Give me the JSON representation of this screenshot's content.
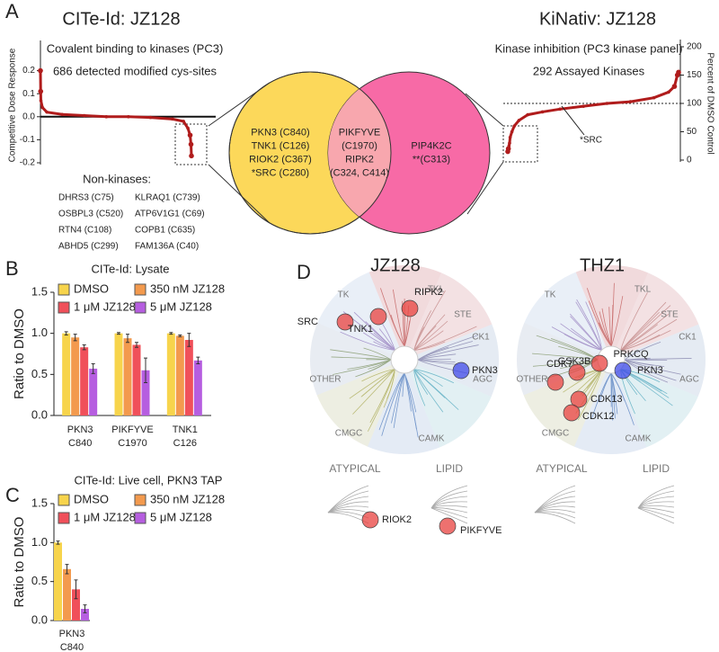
{
  "panels": [
    "A",
    "B",
    "C",
    "D"
  ],
  "chart_data": [
    {
      "type": "line",
      "title": "CITe-Id: JZ128",
      "subtitle": [
        "Covalent binding to kinases (PC3)",
        "686 detected modified cys-sites"
      ],
      "ylabel": "Competitive Dose Response",
      "color": "#b01c1c",
      "y_axis_side": "left",
      "x": [
        1,
        2,
        3,
        10,
        30,
        100,
        200,
        300,
        400,
        500,
        600,
        650,
        670,
        680,
        684,
        686
      ],
      "values": [
        0.2,
        0.11,
        0.07,
        0.04,
        0.02,
        0.01,
        0.005,
        0,
        0,
        -0.003,
        -0.01,
        -0.02,
        -0.05,
        -0.08,
        -0.12,
        -0.17
      ],
      "xlim": [
        1,
        686
      ],
      "ylim": [
        -0.2,
        0.3
      ],
      "yticks": [
        0.2,
        0.1,
        {
          "value": 0,
          "label": "0.0"
        },
        -0.1,
        -0.2
      ],
      "zero_line": true
    },
    {
      "type": "line",
      "title": "KiNativ: JZ128",
      "subtitle": [
        "Kinase inhibition (PC3 kinase panel)",
        "292 Assayed Kinases"
      ],
      "ylabel": "Percent of DMSO Control",
      "color": "#b01c1c",
      "y_axis_side": "right",
      "x": [
        1,
        2,
        3,
        4,
        5,
        8,
        12,
        20,
        35,
        60,
        90,
        130,
        170,
        210,
        250,
        275,
        285,
        290,
        292
      ],
      "values": [
        15,
        20,
        25,
        30,
        40,
        50,
        60,
        70,
        80,
        85,
        90,
        95,
        100,
        103,
        110,
        120,
        130,
        150,
        155
      ],
      "xlim": [
        1,
        292
      ],
      "ylim": [
        0,
        200
      ],
      "yticks": [
        0,
        50,
        100,
        150,
        200
      ],
      "reference_line": 100,
      "annotation": "*SRC"
    },
    {
      "type": "bar",
      "title": "CITe-Id: Lysate",
      "ylabel": "Ratio to DMSO",
      "categories": [
        [
          "PKN3",
          "C840"
        ],
        [
          "PIKFYVE",
          "C1970"
        ],
        [
          "TNK1",
          "C126"
        ]
      ],
      "series": [
        {
          "name": "DMSO",
          "color": "#f7d44c",
          "values": [
            1.0,
            1.0,
            1.0
          ],
          "errors": [
            0.02,
            0.01,
            0.01
          ]
        },
        {
          "name": "350 nM JZ128",
          "color": "#f39a4e",
          "values": [
            0.95,
            0.94,
            0.97
          ],
          "errors": [
            0.04,
            0.05,
            0.01
          ]
        },
        {
          "name": "1 μM JZ128",
          "color": "#f0505a",
          "values": [
            0.83,
            0.86,
            0.92
          ],
          "errors": [
            0.03,
            0.03,
            0.08
          ]
        },
        {
          "name": "5 μM JZ128",
          "color": "#b65ee0",
          "values": [
            0.57,
            0.55,
            0.67
          ],
          "errors": [
            0.06,
            0.15,
            0.04
          ]
        }
      ],
      "ylim": [
        0,
        1.5
      ],
      "yticks": [
        {
          "value": 0,
          "label": "0.0"
        },
        0.5,
        {
          "value": 1,
          "label": "1.0"
        },
        1.5
      ]
    },
    {
      "type": "bar",
      "title": "CITe-Id: Live cell, PKN3 TAP",
      "ylabel": "Ratio to DMSO",
      "categories": [
        [
          "PKN3",
          "C840"
        ]
      ],
      "series": [
        {
          "name": "DMSO",
          "color": "#f7d44c",
          "values": [
            1.0
          ],
          "errors": [
            0.02
          ]
        },
        {
          "name": "350 nM JZ128",
          "color": "#f39a4e",
          "values": [
            0.66
          ],
          "errors": [
            0.06
          ]
        },
        {
          "name": "1 μM JZ128",
          "color": "#f0505a",
          "values": [
            0.4
          ],
          "errors": [
            0.12
          ]
        },
        {
          "name": "5 μM JZ128",
          "color": "#b65ee0",
          "values": [
            0.15
          ],
          "errors": [
            0.05
          ]
        }
      ],
      "ylim": [
        0,
        1.5
      ],
      "yticks": [
        {
          "value": 0,
          "label": "0.0"
        },
        0.5,
        {
          "value": 1,
          "label": "1.0"
        },
        1.5
      ]
    }
  ],
  "nonkinases": {
    "title": "Non-kinases:",
    "items": [
      [
        "DHRS3 (C75)",
        "OSBPL3 (C520)",
        "RTN4 (C108)",
        "ABHD5 (C299)"
      ],
      [
        "KLRAQ1 (C739)",
        "ATP6V1G1 (C69)",
        "COPB1 (C635)",
        "FAM136A (C40)"
      ]
    ]
  },
  "venn": {
    "left": [
      "PKN3 (C840)",
      "TNK1 (C126)",
      "RIOK2 (C367)",
      "*SRC (C280)"
    ],
    "overlap": [
      "PIKFYVE",
      "(C1970)",
      "RIPK2",
      "(C324, C414)"
    ],
    "right": [
      "PIP4K2C",
      "**(C313)"
    ]
  },
  "kinome": [
    {
      "title": "JZ128",
      "groups": [
        "TK",
        "TKL",
        "STE",
        "CK1",
        "AGC",
        "CAMK",
        "CMGC",
        "OTHER"
      ],
      "subtrees": [
        "ATYPICAL",
        "LIPID"
      ],
      "hits": [
        {
          "name": "SRC",
          "color": "#e8413f"
        },
        {
          "name": "TNK1",
          "color": "#e8413f"
        },
        {
          "name": "RIPK2",
          "color": "#e8413f"
        },
        {
          "name": "PKN3",
          "color": "#3f4ae8"
        },
        {
          "name": "RIOK2",
          "color": "#e8413f"
        },
        {
          "name": "PIKFYVE",
          "color": "#e8413f"
        }
      ]
    },
    {
      "title": "THZ1",
      "groups": [
        "TK",
        "TKL",
        "STE",
        "CK1",
        "AGC",
        "CAMK",
        "CMGC",
        "OTHER"
      ],
      "subtrees": [
        "ATYPICAL",
        "LIPID"
      ],
      "hits": [
        {
          "name": "CDK7",
          "color": "#e8413f"
        },
        {
          "name": "GSK3B",
          "color": "#e8413f"
        },
        {
          "name": "PRKCQ",
          "color": "#e8413f"
        },
        {
          "name": "PKN3",
          "color": "#3f4ae8"
        },
        {
          "name": "CDK13",
          "color": "#e8413f"
        },
        {
          "name": "CDK12",
          "color": "#e8413f"
        }
      ]
    }
  ]
}
